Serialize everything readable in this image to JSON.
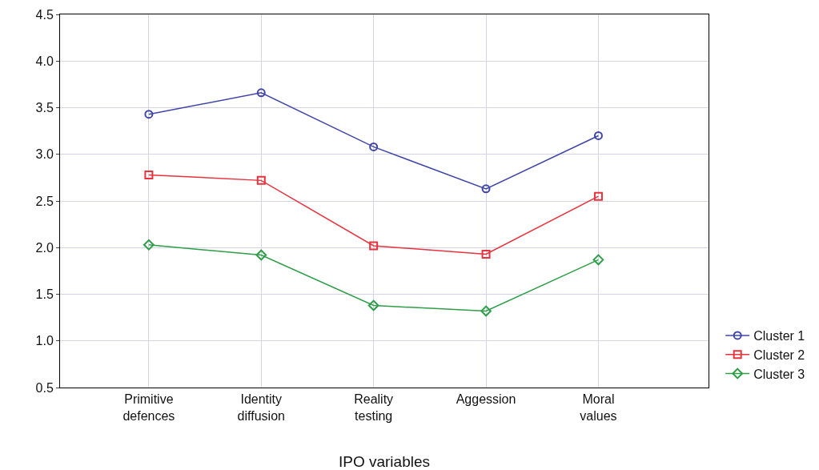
{
  "chart_data": {
    "type": "line",
    "xlabel": "IPO variables",
    "categories": [
      "Primitive defences",
      "Identity diffusion",
      "Reality testing",
      "Aggession",
      "Moral values"
    ],
    "series": [
      {
        "name": "Cluster 1",
        "color": "#3f46a8",
        "marker": "circle",
        "values": [
          3.43,
          3.66,
          3.08,
          2.63,
          3.2
        ]
      },
      {
        "name": "Cluster 2",
        "color": "#e8323c",
        "marker": "square",
        "values": [
          2.78,
          2.72,
          2.02,
          1.93,
          2.55
        ]
      },
      {
        "name": "Cluster 3",
        "color": "#2e9e48",
        "marker": "diamond",
        "values": [
          2.03,
          1.92,
          1.38,
          1.32,
          1.87
        ]
      }
    ],
    "ylim": [
      0.5,
      4.5
    ],
    "yticks": [
      {
        "value": 0.5,
        "label": "0.5"
      },
      {
        "value": 1,
        "label": "1.0"
      },
      {
        "value": 1.5,
        "label": "1.5"
      },
      {
        "value": 2,
        "label": "2.0"
      },
      {
        "value": 2.5,
        "label": "2.5"
      },
      {
        "value": 3,
        "label": "3.0"
      },
      {
        "value": 3.5,
        "label": "3.5"
      },
      {
        "value": 4,
        "label": "4.0"
      },
      {
        "value": 4.5,
        "label": "4.5"
      }
    ],
    "grid": true,
    "legend": "bottom right",
    "line_style": "solid"
  }
}
